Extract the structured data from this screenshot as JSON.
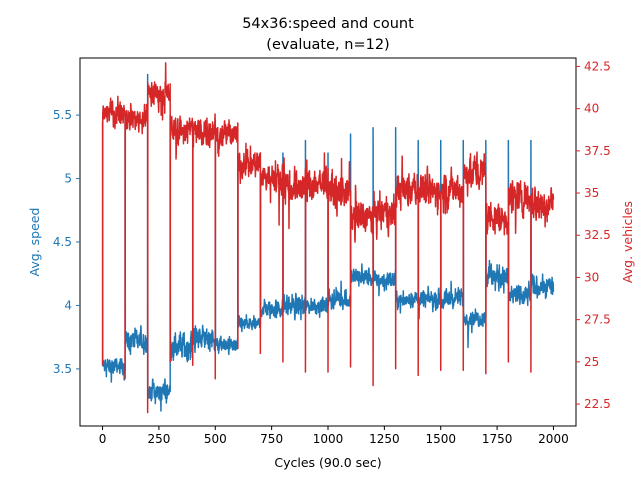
{
  "chart_data": {
    "type": "line",
    "title": "54x36:speed and count",
    "subtitle": "(evaluate, n=12)",
    "xlabel": "Cycles (90.0 sec)",
    "ylabel_left": "Avg. speed",
    "ylabel_right": "Avg. vehicles",
    "xlim": [
      -100,
      2100
    ],
    "ylim_left": [
      3.05,
      5.95
    ],
    "ylim_right": [
      21.2,
      43.0
    ],
    "x_ticks": [
      0,
      250,
      500,
      750,
      1000,
      1250,
      1500,
      1750,
      2000
    ],
    "y_left_ticks": [
      3.5,
      4.0,
      4.5,
      5.0,
      5.5
    ],
    "y_right_ticks": [
      22.5,
      25.0,
      27.5,
      30.0,
      32.5,
      35.0,
      37.5,
      40.0,
      42.5
    ],
    "grid": false,
    "legend": "none",
    "colors": {
      "speed": "#1f77b4",
      "vehicles": "#d62728"
    },
    "series": [
      {
        "axis": "left",
        "points_per_cycle": 1,
        "resets_every": 100,
        "segments": [
          {
            "x0": 0,
            "x1": 100,
            "mean": 3.52,
            "noise": 0.05,
            "start": 5.45
          },
          {
            "x0": 100,
            "x1": 200,
            "mean": 3.72,
            "noise": 0.07,
            "start": 5.5
          },
          {
            "x0": 200,
            "x1": 300,
            "mean": 3.32,
            "noise": 0.07,
            "start": 5.82
          },
          {
            "x0": 300,
            "x1": 400,
            "mean": 3.68,
            "noise": 0.09,
            "start": 5.5
          },
          {
            "x0": 400,
            "x1": 500,
            "mean": 3.75,
            "noise": 0.08,
            "start": 5.45
          },
          {
            "x0": 500,
            "x1": 600,
            "mean": 3.68,
            "noise": 0.05,
            "start": 5.45
          },
          {
            "x0": 600,
            "x1": 700,
            "mean": 3.85,
            "noise": 0.05,
            "start": 5.2
          },
          {
            "x0": 700,
            "x1": 800,
            "mean": 3.97,
            "noise": 0.06,
            "start": 5.15
          },
          {
            "x0": 800,
            "x1": 900,
            "mean": 4.0,
            "noise": 0.07,
            "start": 5.2
          },
          {
            "x0": 900,
            "x1": 1000,
            "mean": 4.0,
            "noise": 0.05,
            "start": 5.3
          },
          {
            "x0": 1000,
            "x1": 1100,
            "mean": 4.05,
            "noise": 0.06,
            "start": 5.2
          },
          {
            "x0": 1100,
            "x1": 1200,
            "mean": 4.22,
            "noise": 0.06,
            "start": 5.35
          },
          {
            "x0": 1200,
            "x1": 1300,
            "mean": 4.2,
            "noise": 0.06,
            "start": 5.4
          },
          {
            "x0": 1300,
            "x1": 1400,
            "mean": 4.05,
            "noise": 0.05,
            "start": 5.4
          },
          {
            "x0": 1400,
            "x1": 1500,
            "mean": 4.05,
            "noise": 0.06,
            "start": 5.3
          },
          {
            "x0": 1500,
            "x1": 1600,
            "mean": 4.05,
            "noise": 0.06,
            "start": 5.3
          },
          {
            "x0": 1600,
            "x1": 1700,
            "mean": 3.9,
            "noise": 0.05,
            "start": 5.3
          },
          {
            "x0": 1700,
            "x1": 1800,
            "mean": 4.22,
            "noise": 0.08,
            "start": 5.3
          },
          {
            "x0": 1800,
            "x1": 1900,
            "mean": 4.08,
            "noise": 0.06,
            "start": 5.3
          },
          {
            "x0": 1900,
            "x1": 2000,
            "mean": 4.15,
            "noise": 0.07,
            "start": 5.3
          }
        ]
      },
      {
        "axis": "right",
        "points_per_cycle": 1,
        "resets_every": 100,
        "segments": [
          {
            "x0": 0,
            "x1": 100,
            "mean": 39.8,
            "noise": 0.6,
            "start": 24.8
          },
          {
            "x0": 100,
            "x1": 200,
            "mean": 39.4,
            "noise": 0.6,
            "start": 24.0
          },
          {
            "x0": 200,
            "x1": 300,
            "mean": 40.9,
            "noise": 0.6,
            "start": 22.0
          },
          {
            "x0": 300,
            "x1": 400,
            "mean": 38.7,
            "noise": 0.7,
            "start": 25.0
          },
          {
            "x0": 400,
            "x1": 500,
            "mean": 38.7,
            "noise": 0.7,
            "start": 24.8
          },
          {
            "x0": 500,
            "x1": 600,
            "mean": 38.5,
            "noise": 0.6,
            "start": 24.0
          },
          {
            "x0": 600,
            "x1": 700,
            "mean": 36.7,
            "noise": 0.7,
            "start": 25.8
          },
          {
            "x0": 700,
            "x1": 800,
            "mean": 36.0,
            "noise": 0.7,
            "start": 25.5
          },
          {
            "x0": 800,
            "x1": 900,
            "mean": 35.4,
            "noise": 0.8,
            "start": 25.0
          },
          {
            "x0": 900,
            "x1": 1000,
            "mean": 35.6,
            "noise": 0.8,
            "start": 24.4
          },
          {
            "x0": 1000,
            "x1": 1100,
            "mean": 35.0,
            "noise": 0.8,
            "start": 24.4
          },
          {
            "x0": 1100,
            "x1": 1200,
            "mean": 33.6,
            "noise": 0.8,
            "start": 24.7
          },
          {
            "x0": 1200,
            "x1": 1300,
            "mean": 33.8,
            "noise": 0.8,
            "start": 23.6
          },
          {
            "x0": 1300,
            "x1": 1400,
            "mean": 35.2,
            "noise": 0.8,
            "start": 24.6
          },
          {
            "x0": 1400,
            "x1": 1500,
            "mean": 35.1,
            "noise": 0.8,
            "start": 24.2
          },
          {
            "x0": 1500,
            "x1": 1600,
            "mean": 35.2,
            "noise": 0.8,
            "start": 24.5
          },
          {
            "x0": 1600,
            "x1": 1700,
            "mean": 36.2,
            "noise": 0.8,
            "start": 24.5
          },
          {
            "x0": 1700,
            "x1": 1800,
            "mean": 33.5,
            "noise": 0.8,
            "start": 24.3
          },
          {
            "x0": 1800,
            "x1": 1900,
            "mean": 34.8,
            "noise": 0.8,
            "start": 25.0
          },
          {
            "x0": 1900,
            "x1": 2000,
            "mean": 34.4,
            "noise": 0.8,
            "start": 24.4
          }
        ]
      }
    ]
  }
}
